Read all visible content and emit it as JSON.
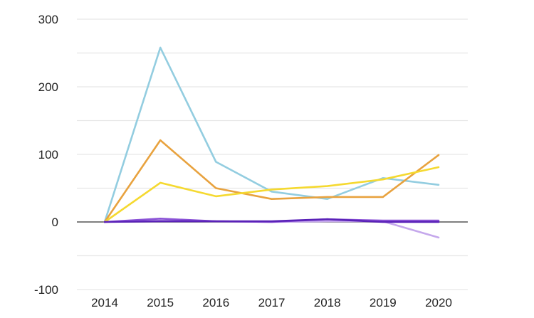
{
  "chart_data": {
    "type": "line",
    "title": "",
    "xlabel": "",
    "ylabel": "",
    "x": [
      "2014",
      "2015",
      "2016",
      "2017",
      "2018",
      "2019",
      "2020"
    ],
    "ylim": [
      -100,
      300
    ],
    "yticks": [
      -100,
      0,
      100,
      200,
      300
    ],
    "ytick_labels": [
      "-100",
      "0",
      "100",
      "200",
      "300"
    ],
    "grid": true,
    "legend": "none",
    "series": [
      {
        "name": "series-light-blue",
        "color": "#93cde0",
        "values": [
          0,
          258,
          89,
          45,
          34,
          65,
          55
        ]
      },
      {
        "name": "series-orange",
        "color": "#e8a23e",
        "values": [
          0,
          121,
          50,
          34,
          37,
          37,
          99
        ]
      },
      {
        "name": "series-yellow",
        "color": "#f5d930",
        "values": [
          0,
          58,
          38,
          48,
          53,
          63,
          81
        ]
      },
      {
        "name": "series-lavender",
        "color": "#c5a8ec",
        "values": [
          0,
          2,
          1,
          0,
          1,
          1,
          -23
        ]
      },
      {
        "name": "series-violet",
        "color": "#8a52d6",
        "values": [
          0,
          5,
          1,
          0,
          4,
          2,
          2
        ]
      },
      {
        "name": "series-indigo",
        "color": "#5a22b8",
        "values": [
          0,
          1,
          1,
          1,
          4,
          0,
          0
        ]
      }
    ]
  }
}
